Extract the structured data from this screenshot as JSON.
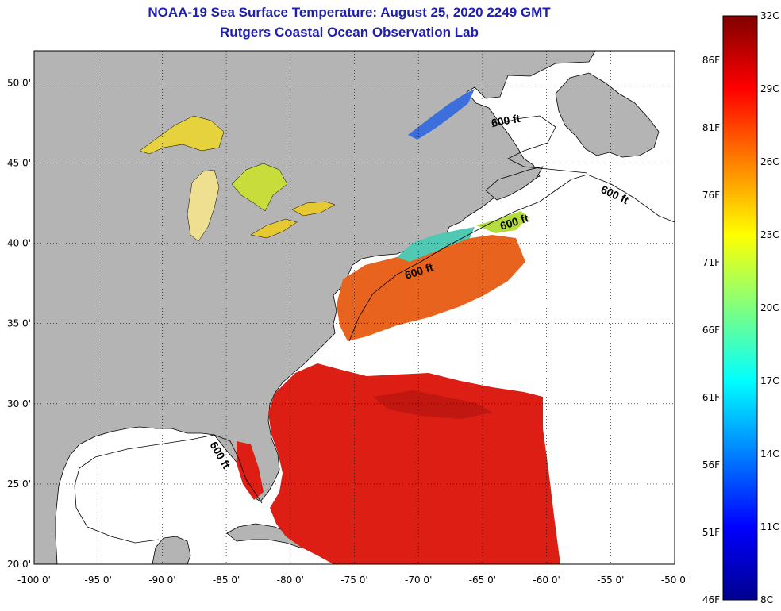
{
  "title": {
    "line1": "NOAA-19 Sea Surface Temperature:  August 25, 2020 2249 GMT",
    "line2": "Rutgers Coastal Ocean Observation Lab"
  },
  "map": {
    "lon_range": [
      -100,
      -50
    ],
    "lat_range": [
      20,
      52
    ],
    "lon_ticks": [
      {
        "value": -100,
        "label": "-100 0'"
      },
      {
        "value": -95,
        "label": "-95 0'"
      },
      {
        "value": -90,
        "label": "-90 0'"
      },
      {
        "value": -85,
        "label": "-85 0'"
      },
      {
        "value": -80,
        "label": "-80 0'"
      },
      {
        "value": -75,
        "label": "-75 0'"
      },
      {
        "value": -70,
        "label": "-70 0'"
      },
      {
        "value": -65,
        "label": "-65 0'"
      },
      {
        "value": -60,
        "label": "-60 0'"
      },
      {
        "value": -55,
        "label": "-55 0'"
      },
      {
        "value": -50,
        "label": "-50 0'"
      }
    ],
    "lat_ticks": [
      {
        "value": 50,
        "label": "50 0'"
      },
      {
        "value": 45,
        "label": "45 0'"
      },
      {
        "value": 40,
        "label": "40 0'"
      },
      {
        "value": 35,
        "label": "35 0'"
      },
      {
        "value": 30,
        "label": "30 0'"
      },
      {
        "value": 25,
        "label": "25 0'"
      },
      {
        "value": 20,
        "label": "20 0'"
      }
    ],
    "gridlines": "dotted",
    "contour_labels": [
      "600 ft",
      "600 ft",
      "600 ft",
      "600 ft",
      "600 ft"
    ],
    "colors": {
      "land": "#b4b4b4",
      "no_data": "#ffffff",
      "warm_ocean": "#dc1e14",
      "gulf_stream": "#e65a14",
      "shelf_water": "#50c8b4",
      "lakes": "#e6d23c"
    }
  },
  "colorbar": {
    "celsius_labels": [
      "32C",
      "29C",
      "26C",
      "23C",
      "20C",
      "17C",
      "14C",
      "11C",
      "8C"
    ],
    "fahrenheit_labels": [
      "86F",
      "81F",
      "76F",
      "71F",
      "66F",
      "61F",
      "56F",
      "51F",
      "46F"
    ],
    "range_c": [
      8,
      32
    ],
    "gradient_colors": [
      "#00008f",
      "#0000ff",
      "#0080ff",
      "#00ffff",
      "#80ff80",
      "#ffff00",
      "#ff8000",
      "#ff0000",
      "#800000"
    ]
  }
}
